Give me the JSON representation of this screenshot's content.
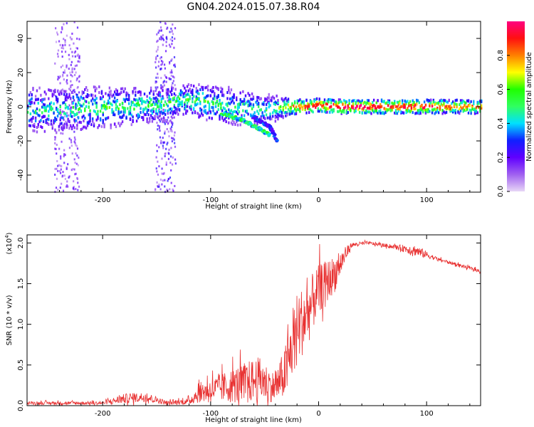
{
  "title": "GN04.2024.015.07.38.R04",
  "chart_data": [
    {
      "type": "heatmap",
      "name": "spectrogram",
      "xlabel": "Height of straight line (km)",
      "ylabel": "Frequency (Hz)",
      "xlim": [
        -270,
        150
      ],
      "ylim": [
        -50,
        50
      ],
      "xticks": [
        -200,
        -100,
        0,
        100
      ],
      "yticks": [
        -40,
        -20,
        0,
        20,
        40
      ],
      "colormap": [
        "#e8d6f6",
        "#a060f0",
        "#6000ff",
        "#1020ff",
        "#00e0ff",
        "#30ff60",
        "#20ff00",
        "#ffff00",
        "#ff8000",
        "#ff1010",
        "#ff0080"
      ],
      "colorbar": {
        "label": "Normalized spectral amplitude",
        "range": [
          0,
          1
        ],
        "ticks": [
          0.0,
          0.2,
          0.4,
          0.6,
          0.8
        ]
      },
      "ridge": [
        {
          "x": -270,
          "y": -2,
          "spread": 6,
          "amp": 0.45
        },
        {
          "x": -240,
          "y": -2,
          "spread": 6,
          "amp": 0.48
        },
        {
          "x": -210,
          "y": -1,
          "spread": 6,
          "amp": 0.52
        },
        {
          "x": -180,
          "y": 0,
          "spread": 5,
          "amp": 0.55
        },
        {
          "x": -150,
          "y": 1,
          "spread": 5,
          "amp": 0.52
        },
        {
          "x": -130,
          "y": 4,
          "spread": 4,
          "amp": 0.55
        },
        {
          "x": -110,
          "y": 3,
          "spread": 5,
          "amp": 0.55
        },
        {
          "x": -90,
          "y": 1,
          "spread": 5,
          "amp": 0.52
        },
        {
          "x": -70,
          "y": -1,
          "spread": 5,
          "amp": 0.5
        },
        {
          "x": -50,
          "y": -2,
          "spread": 4,
          "amp": 0.5
        },
        {
          "x": -30,
          "y": 0,
          "spread": 3,
          "amp": 0.75
        },
        {
          "x": -10,
          "y": 0,
          "spread": 2.5,
          "amp": 0.85
        },
        {
          "x": 0,
          "y": 1,
          "spread": 2.5,
          "amp": 0.9
        },
        {
          "x": 20,
          "y": 0,
          "spread": 2.5,
          "amp": 0.95
        },
        {
          "x": 60,
          "y": 0,
          "spread": 2.5,
          "amp": 0.92
        },
        {
          "x": 100,
          "y": 0,
          "spread": 2.5,
          "amp": 0.88
        },
        {
          "x": 150,
          "y": 0,
          "spread": 2.5,
          "amp": 0.75
        }
      ],
      "branches": [
        {
          "x": [
            -90,
            -70,
            -55,
            -45
          ],
          "y": [
            -4,
            -8,
            -13,
            -17
          ],
          "amp": 0.5
        },
        {
          "x": [
            -60,
            -45,
            -38
          ],
          "y": [
            -6,
            -12,
            -20
          ],
          "amp": 0.3
        }
      ],
      "scatter_bands": [
        {
          "x_range": [
            -245,
            -222
          ],
          "y_range": [
            -50,
            50
          ],
          "amp": 0.18
        },
        {
          "x_range": [
            -152,
            -133
          ],
          "y_range": [
            -50,
            50
          ],
          "amp": 0.22
        }
      ]
    },
    {
      "type": "line",
      "name": "snr",
      "xlabel": "Height of straight line (km)",
      "ylabel": "SNR (10 * v/v)",
      "yscale_label": "(x10",
      "yscale_exp": "4",
      "yscale_suffix": ")",
      "xlim": [
        -270,
        150
      ],
      "ylim": [
        0,
        2.1
      ],
      "xticks": [
        -200,
        -100,
        0,
        100
      ],
      "yticks": [
        0.0,
        0.5,
        1.0,
        1.5,
        2.0
      ],
      "color": "#e83030",
      "points": [
        {
          "x": -270,
          "y": 0.03,
          "noise": 0.04
        },
        {
          "x": -200,
          "y": 0.03,
          "noise": 0.04
        },
        {
          "x": -180,
          "y": 0.08,
          "noise": 0.12
        },
        {
          "x": -160,
          "y": 0.1,
          "noise": 0.12
        },
        {
          "x": -140,
          "y": 0.03,
          "noise": 0.05
        },
        {
          "x": -120,
          "y": 0.05,
          "noise": 0.08
        },
        {
          "x": -110,
          "y": 0.15,
          "noise": 0.25
        },
        {
          "x": -90,
          "y": 0.2,
          "noise": 0.35
        },
        {
          "x": -70,
          "y": 0.25,
          "noise": 0.5
        },
        {
          "x": -55,
          "y": 0.3,
          "noise": 0.55
        },
        {
          "x": -40,
          "y": 0.2,
          "noise": 0.35
        },
        {
          "x": -30,
          "y": 0.4,
          "noise": 0.7
        },
        {
          "x": -20,
          "y": 0.9,
          "noise": 0.9
        },
        {
          "x": -10,
          "y": 1.1,
          "noise": 0.8
        },
        {
          "x": 0,
          "y": 1.4,
          "noise": 0.6
        },
        {
          "x": 15,
          "y": 1.6,
          "noise": 0.45
        },
        {
          "x": 30,
          "y": 1.97,
          "noise": 0.06
        },
        {
          "x": 45,
          "y": 2.0,
          "noise": 0.04
        },
        {
          "x": 70,
          "y": 1.95,
          "noise": 0.05
        },
        {
          "x": 90,
          "y": 1.9,
          "noise": 0.14
        },
        {
          "x": 110,
          "y": 1.8,
          "noise": 0.04
        },
        {
          "x": 150,
          "y": 1.65,
          "noise": 0.04
        }
      ]
    }
  ]
}
